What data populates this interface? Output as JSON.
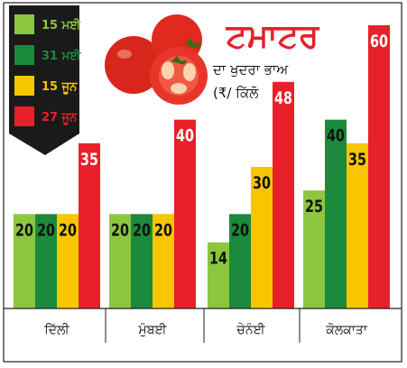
{
  "chart_data": {
    "type": "bar",
    "title": "ਟਮਾਟਰ",
    "subtitle": "ਦਾ ਖੁਦਰਾ ਭਾਅ",
    "unit": "(₹/ ਕਿੱਲੋ",
    "categories": [
      "ਦਿੱਲੀ",
      "ਮੁੰਬਈ",
      "ਚੇਨੰਈ",
      "ਕੋਲਕਾਤਾ"
    ],
    "series": [
      {
        "name": "15 ਮਈ",
        "color": "#8cc63f",
        "values": [
          20,
          20,
          14,
          25
        ]
      },
      {
        "name": "31 ਮਈ",
        "color": "#1b8a3c",
        "values": [
          20,
          20,
          20,
          40
        ]
      },
      {
        "name": "15 ਜੂਨ",
        "color": "#f7c600",
        "values": [
          20,
          20,
          30,
          35
        ]
      },
      {
        "name": "27 ਜੂਨ",
        "color": "#e8202a",
        "values": [
          35,
          40,
          48,
          60
        ]
      }
    ],
    "ylim": [
      0,
      60
    ],
    "legend_position": "top-left",
    "grid": false
  },
  "colors": {
    "legend_bg": "#1a1a1a",
    "title_red": "#e8202a",
    "frame": "#222222"
  },
  "illustration": "tomato-illustration"
}
